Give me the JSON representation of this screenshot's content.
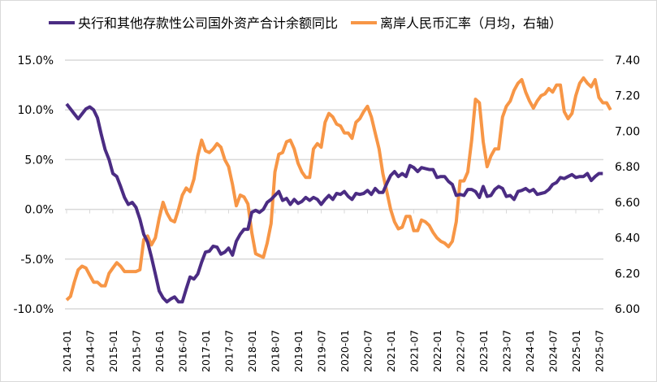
{
  "chart_data": {
    "type": "line",
    "title": "",
    "legend_position": "top",
    "grid": true,
    "x_start": "2014-01",
    "x_tick_labels": [
      "2014-01",
      "2014-07",
      "2015-01",
      "2015-07",
      "2016-01",
      "2016-07",
      "2017-01",
      "2017-07",
      "2018-01",
      "2018-07",
      "2019-01",
      "2019-07",
      "2020-01",
      "2020-07",
      "2021-01",
      "2021-07",
      "2022-01",
      "2022-07",
      "2023-01",
      "2023-07",
      "2024-01",
      "2024-07",
      "2025-01",
      "2025-07"
    ],
    "left_axis": {
      "min": -10,
      "max": 15,
      "step": 5,
      "tick_labels": [
        "-10.0%",
        "-5.0%",
        "0.0%",
        "5.0%",
        "10.0%",
        "15.0%"
      ]
    },
    "right_axis": {
      "min": 6.0,
      "max": 7.4,
      "step": 0.2,
      "tick_labels": [
        "6.00",
        "6.20",
        "6.40",
        "6.60",
        "6.80",
        "7.00",
        "7.20",
        "7.40"
      ]
    },
    "series": [
      {
        "name": "央行和其他存款性公司国外资产合计余额同比",
        "axis": "left",
        "color": "#4B2C83",
        "values": [
          10.6,
          10.1,
          9.6,
          9.1,
          9.6,
          10.1,
          10.3,
          10.0,
          9.2,
          7.5,
          6.0,
          5.0,
          3.6,
          3.3,
          2.3,
          1.2,
          0.5,
          0.7,
          0.2,
          -1.0,
          -2.5,
          -3.3,
          -4.8,
          -6.5,
          -8.2,
          -8.9,
          -9.3,
          -9.0,
          -8.8,
          -9.3,
          -9.3,
          -8.0,
          -6.8,
          -7.0,
          -6.5,
          -5.3,
          -4.3,
          -4.2,
          -3.7,
          -3.8,
          -4.5,
          -4.3,
          -3.9,
          -4.6,
          -3.2,
          -2.5,
          -2.0,
          -2.0,
          -0.3,
          -0.1,
          -0.3,
          0.0,
          0.7,
          1.0,
          1.4,
          1.8,
          0.9,
          1.1,
          0.5,
          1.0,
          0.6,
          0.8,
          1.2,
          0.9,
          1.2,
          1.0,
          0.5,
          1.0,
          1.4,
          1.0,
          1.6,
          1.5,
          1.8,
          1.3,
          1.0,
          1.6,
          1.5,
          1.6,
          1.9,
          1.5,
          2.1,
          1.7,
          1.7,
          2.6,
          3.4,
          3.8,
          3.3,
          3.6,
          3.3,
          4.4,
          4.2,
          3.8,
          4.2,
          4.1,
          4.0,
          4.0,
          3.2,
          3.3,
          3.3,
          2.8,
          2.5,
          1.4,
          1.5,
          1.4,
          2.0,
          2.0,
          1.8,
          1.2,
          2.3,
          1.3,
          1.4,
          2.0,
          2.3,
          2.1,
          1.3,
          1.4,
          1.0,
          1.8,
          1.9,
          2.1,
          1.8,
          2.0,
          1.5,
          1.6,
          1.7,
          2.0,
          2.5,
          2.7,
          3.2,
          3.1,
          3.3,
          3.5,
          3.2,
          3.3,
          3.3,
          3.6,
          2.9,
          3.3,
          3.6,
          3.6
        ]
      },
      {
        "name": "离岸人民币汇率（月均，右轴）",
        "axis": "right",
        "color": "#F79646",
        "values": [
          6.05,
          6.07,
          6.15,
          6.22,
          6.24,
          6.23,
          6.19,
          6.15,
          6.15,
          6.13,
          6.13,
          6.2,
          6.23,
          6.26,
          6.24,
          6.21,
          6.21,
          6.21,
          6.21,
          6.22,
          6.39,
          6.41,
          6.36,
          6.4,
          6.51,
          6.6,
          6.54,
          6.5,
          6.49,
          6.56,
          6.64,
          6.68,
          6.66,
          6.73,
          6.86,
          6.95,
          6.89,
          6.88,
          6.9,
          6.93,
          6.91,
          6.84,
          6.8,
          6.7,
          6.58,
          6.64,
          6.63,
          6.59,
          6.43,
          6.31,
          6.3,
          6.29,
          6.37,
          6.48,
          6.77,
          6.87,
          6.88,
          6.94,
          6.95,
          6.9,
          6.82,
          6.77,
          6.74,
          6.74,
          6.9,
          6.93,
          6.91,
          7.05,
          7.1,
          7.08,
          7.04,
          7.03,
          6.99,
          6.99,
          6.96,
          7.05,
          7.07,
          7.11,
          7.14,
          7.08,
          6.99,
          6.9,
          6.76,
          6.66,
          6.56,
          6.49,
          6.45,
          6.46,
          6.52,
          6.52,
          6.44,
          6.44,
          6.5,
          6.49,
          6.47,
          6.43,
          6.4,
          6.38,
          6.37,
          6.35,
          6.38,
          6.49,
          6.72,
          6.72,
          6.77,
          6.95,
          7.18,
          7.16,
          6.94,
          6.8,
          6.86,
          6.9,
          6.9,
          7.08,
          7.14,
          7.17,
          7.23,
          7.27,
          7.29,
          7.22,
          7.17,
          7.13,
          7.17,
          7.2,
          7.21,
          7.24,
          7.22,
          7.26,
          7.26,
          7.11,
          7.07,
          7.1,
          7.2,
          7.27,
          7.3,
          7.27,
          7.25,
          7.29,
          7.19,
          7.16,
          7.16,
          7.12
        ]
      }
    ]
  }
}
